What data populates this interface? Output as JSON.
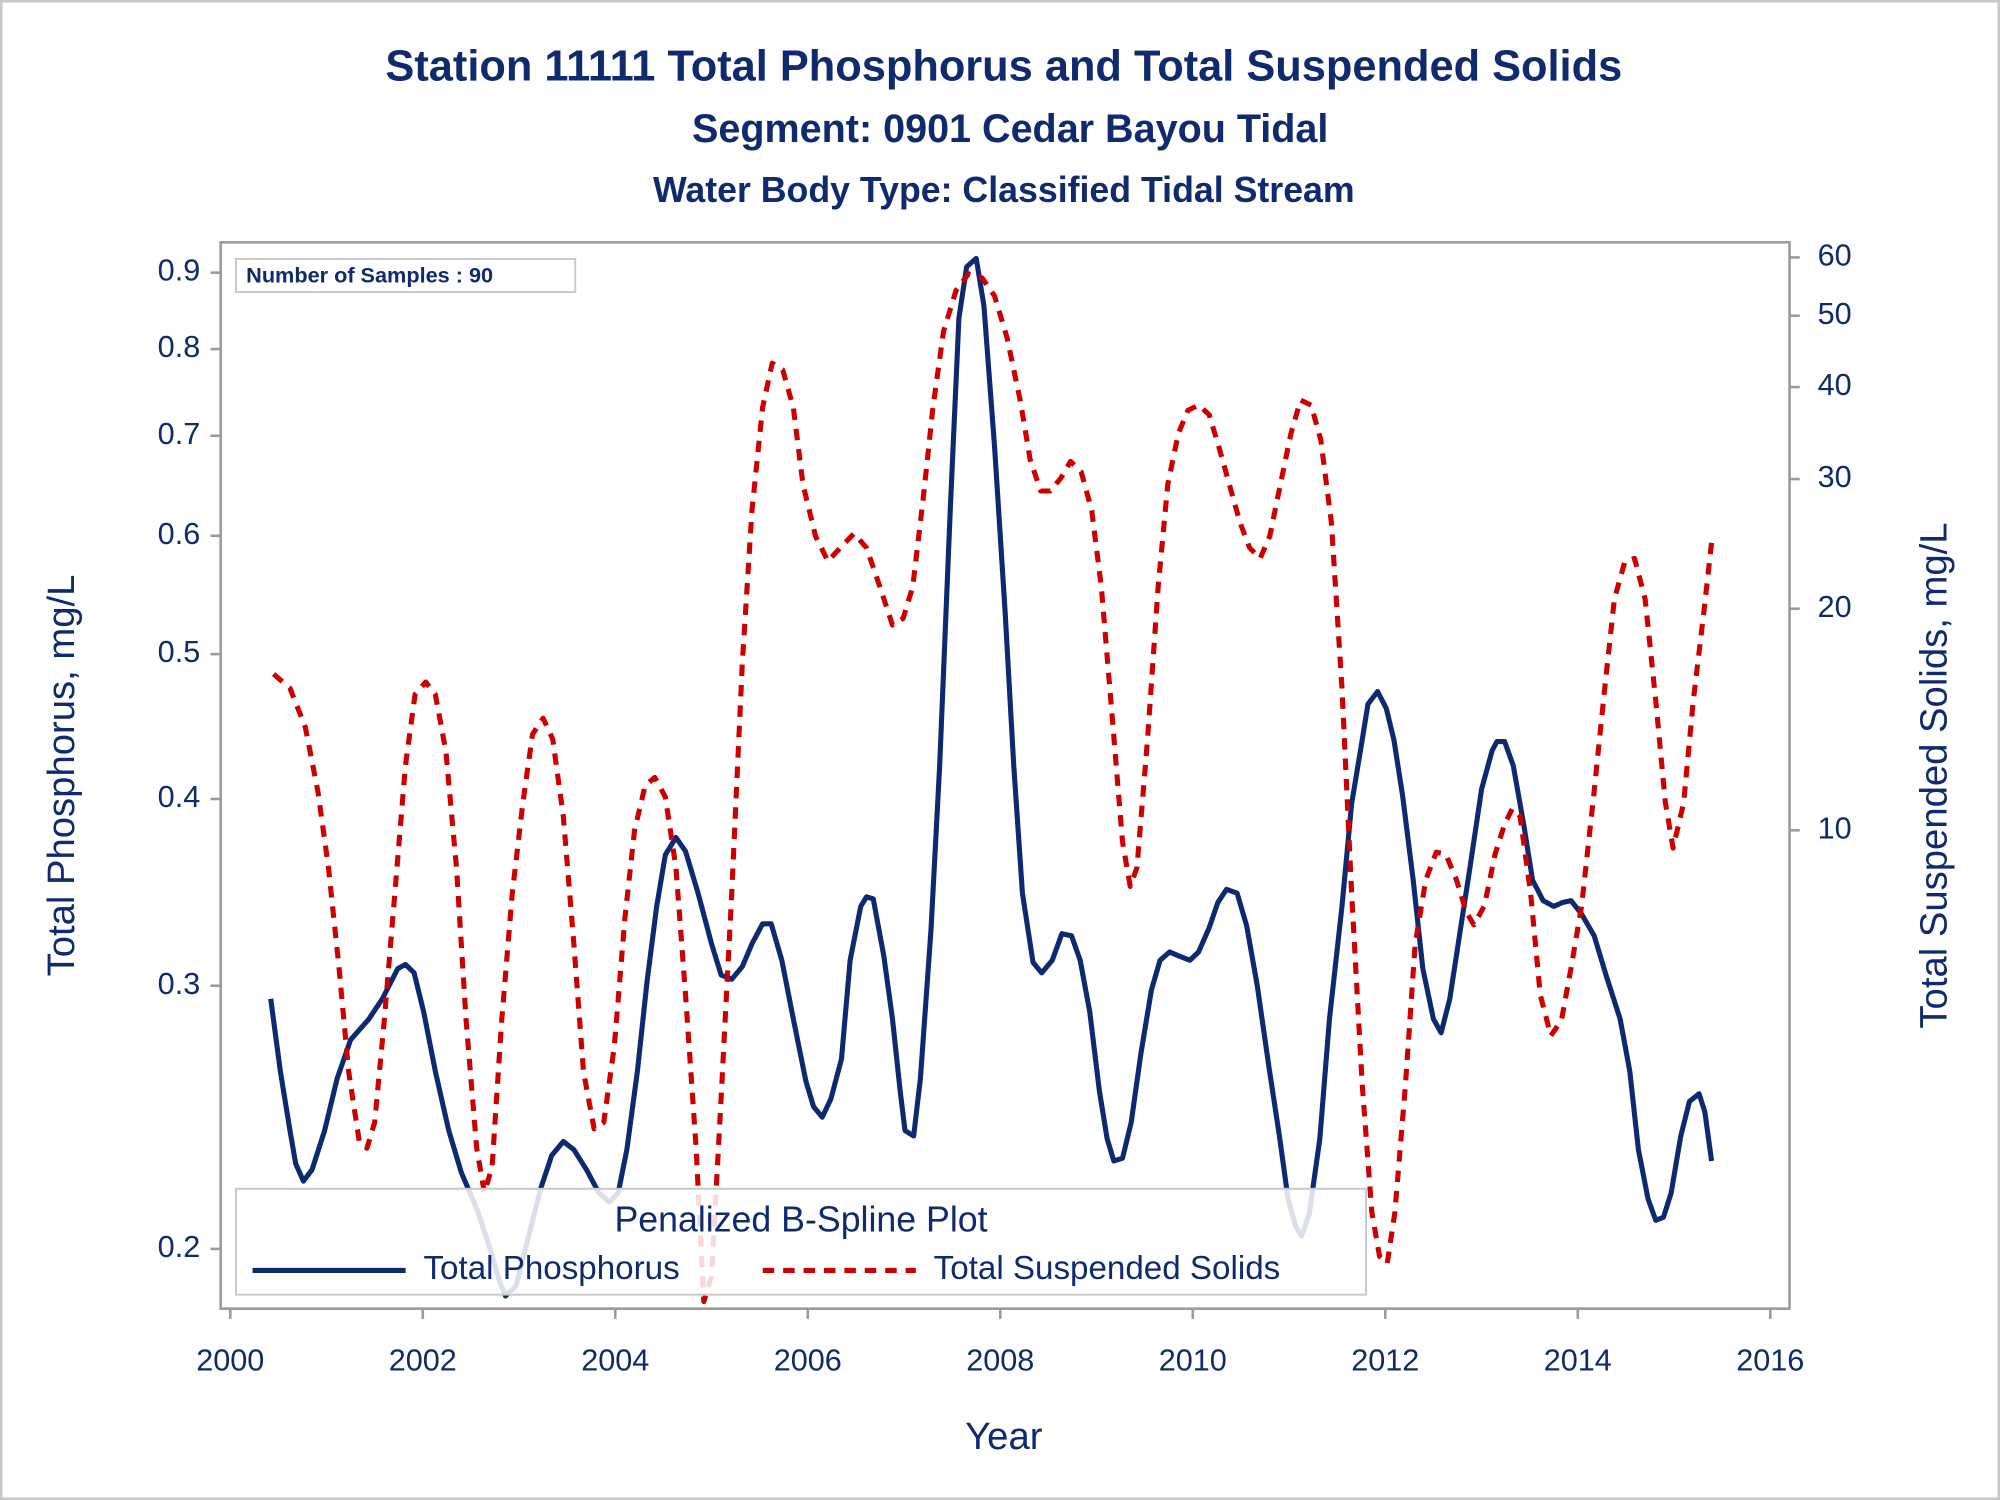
{
  "chart_data": {
    "type": "line",
    "title": "Station 11111  Total Phosphorus and Total Suspended Solids",
    "subtitles": [
      "Segment: 0901  Cedar Bayou Tidal",
      "Water Body Type: Classified Tidal Stream"
    ],
    "annotation": "Number of Samples : 90",
    "xlabel": "Year",
    "ylabel": "Total Phosphorus, mg/L",
    "y2label": "Total Suspended Solids, mg/L",
    "xlim": [
      1999.9,
      2016.2
    ],
    "xticks": [
      2000,
      2002,
      2004,
      2006,
      2008,
      2010,
      2012,
      2014,
      2016
    ],
    "ylim": [
      0.1824,
      0.943
    ],
    "yticks": [
      0.2,
      0.3,
      0.4,
      0.5,
      0.6,
      0.7,
      0.8,
      0.9
    ],
    "y2lim": [
      2.24,
      62.9
    ],
    "y2ticks": [
      10,
      20,
      30,
      40,
      50,
      60
    ],
    "yscale": "log",
    "y2scale": "log",
    "legend": {
      "title": "Penalized B-Spline Plot",
      "position": "bottom-left"
    },
    "series": [
      {
        "name": "Total Phosphorus",
        "color": "#0d2a70",
        "line_style": "solid",
        "axis": "y",
        "x": [
          2000.42,
          2000.52,
          2000.62,
          2000.68,
          2000.76,
          2000.85,
          2000.98,
          2001.11,
          2001.25,
          2001.44,
          2001.58,
          2001.74,
          2001.82,
          2001.91,
          2002.01,
          2002.13,
          2002.27,
          2002.4,
          2002.57,
          2002.7,
          2002.8,
          2002.86,
          2002.97,
          2003.1,
          2003.23,
          2003.34,
          2003.46,
          2003.57,
          2003.7,
          2003.83,
          2003.94,
          2004.03,
          2004.12,
          2004.23,
          2004.33,
          2004.43,
          2004.52,
          2004.63,
          2004.73,
          2004.86,
          2005.0,
          2005.1,
          2005.21,
          2005.32,
          2005.42,
          2005.53,
          2005.62,
          2005.73,
          2005.85,
          2005.98,
          2006.06,
          2006.15,
          2006.24,
          2006.35,
          2006.44,
          2006.55,
          2006.61,
          2006.68,
          2006.79,
          2006.88,
          2006.96,
          2007.01,
          2007.1,
          2007.17,
          2007.28,
          2007.37,
          2007.48,
          2007.57,
          2007.65,
          2007.75,
          2007.83,
          2007.94,
          2008.05,
          2008.14,
          2008.23,
          2008.34,
          2008.43,
          2008.54,
          2008.64,
          2008.74,
          2008.83,
          2008.93,
          2009.03,
          2009.11,
          2009.18,
          2009.27,
          2009.36,
          2009.46,
          2009.57,
          2009.66,
          2009.76,
          2009.86,
          2009.97,
          2010.06,
          2010.17,
          2010.26,
          2010.35,
          2010.46,
          2010.56,
          2010.67,
          2010.79,
          2010.9,
          2010.99,
          2011.07,
          2011.13,
          2011.21,
          2011.32,
          2011.42,
          2011.55,
          2011.65,
          2011.76,
          2011.82,
          2011.92,
          2012.01,
          2012.09,
          2012.18,
          2012.29,
          2012.39,
          2012.5,
          2012.58,
          2012.67,
          2012.78,
          2012.88,
          2013.0,
          2013.11,
          2013.16,
          2013.24,
          2013.33,
          2013.44,
          2013.53,
          2013.64,
          2013.75,
          2013.84,
          2013.93,
          2014.04,
          2014.17,
          2014.3,
          2014.44,
          2014.54,
          2014.63,
          2014.73,
          2014.81,
          2014.89,
          2014.97,
          2015.07,
          2015.16,
          2015.26,
          2015.32,
          2015.39
        ],
        "values": [
          0.294,
          0.263,
          0.24,
          0.228,
          0.222,
          0.226,
          0.24,
          0.26,
          0.276,
          0.285,
          0.294,
          0.308,
          0.31,
          0.306,
          0.288,
          0.263,
          0.24,
          0.225,
          0.212,
          0.2,
          0.19,
          0.186,
          0.189,
          0.204,
          0.22,
          0.231,
          0.236,
          0.233,
          0.226,
          0.218,
          0.215,
          0.218,
          0.233,
          0.263,
          0.302,
          0.339,
          0.367,
          0.377,
          0.369,
          0.346,
          0.32,
          0.305,
          0.303,
          0.309,
          0.32,
          0.33,
          0.33,
          0.312,
          0.285,
          0.259,
          0.249,
          0.245,
          0.252,
          0.268,
          0.312,
          0.339,
          0.344,
          0.343,
          0.314,
          0.285,
          0.255,
          0.24,
          0.238,
          0.26,
          0.327,
          0.421,
          0.624,
          0.839,
          0.908,
          0.92,
          0.855,
          0.689,
          0.534,
          0.421,
          0.346,
          0.311,
          0.306,
          0.312,
          0.325,
          0.324,
          0.312,
          0.288,
          0.255,
          0.237,
          0.229,
          0.23,
          0.243,
          0.27,
          0.298,
          0.312,
          0.316,
          0.314,
          0.312,
          0.316,
          0.328,
          0.341,
          0.348,
          0.346,
          0.329,
          0.3,
          0.265,
          0.238,
          0.216,
          0.207,
          0.204,
          0.211,
          0.237,
          0.285,
          0.339,
          0.397,
          0.438,
          0.463,
          0.472,
          0.46,
          0.438,
          0.402,
          0.353,
          0.308,
          0.285,
          0.279,
          0.294,
          0.327,
          0.36,
          0.406,
          0.431,
          0.437,
          0.437,
          0.421,
          0.384,
          0.353,
          0.342,
          0.339,
          0.341,
          0.342,
          0.335,
          0.324,
          0.304,
          0.285,
          0.263,
          0.233,
          0.216,
          0.209,
          0.21,
          0.218,
          0.238,
          0.251,
          0.254,
          0.247,
          0.229
        ]
      },
      {
        "name": "Total Suspended Solids",
        "color": "#cc0000",
        "line_style": "dashed",
        "axis": "y2",
        "x": [
          2000.45,
          2000.62,
          2000.78,
          2000.91,
          2001.02,
          2001.13,
          2001.23,
          2001.34,
          2001.42,
          2001.5,
          2001.6,
          2001.71,
          2001.82,
          2001.92,
          2002.03,
          2002.13,
          2002.24,
          2002.35,
          2002.45,
          2002.56,
          2002.64,
          2002.72,
          2002.82,
          2002.93,
          2003.04,
          2003.14,
          2003.25,
          2003.35,
          2003.46,
          2003.57,
          2003.67,
          2003.78,
          2003.88,
          2003.99,
          2004.1,
          2004.2,
          2004.31,
          2004.41,
          2004.52,
          2004.63,
          2004.73,
          2004.84,
          2004.92,
          2005.0,
          2005.1,
          2005.21,
          2005.32,
          2005.42,
          2005.53,
          2005.63,
          2005.74,
          2005.85,
          2005.95,
          2006.08,
          2006.21,
          2006.35,
          2006.48,
          2006.61,
          2006.75,
          2006.88,
          2006.99,
          2007.09,
          2007.2,
          2007.3,
          2007.41,
          2007.54,
          2007.67,
          2007.81,
          2007.94,
          2008.07,
          2008.21,
          2008.31,
          2008.42,
          2008.52,
          2008.63,
          2008.73,
          2008.84,
          2008.95,
          2009.05,
          2009.16,
          2009.27,
          2009.35,
          2009.42,
          2009.53,
          2009.64,
          2009.74,
          2009.85,
          2009.95,
          2010.06,
          2010.17,
          2010.27,
          2010.38,
          2010.49,
          2010.59,
          2010.7,
          2010.8,
          2010.91,
          2011.02,
          2011.12,
          2011.23,
          2011.33,
          2011.44,
          2011.55,
          2011.65,
          2011.76,
          2011.86,
          2011.94,
          2012.02,
          2012.1,
          2012.21,
          2012.31,
          2012.42,
          2012.53,
          2012.63,
          2012.74,
          2012.84,
          2012.92,
          2013.03,
          2013.14,
          2013.24,
          2013.32,
          2013.4,
          2013.51,
          2013.61,
          2013.72,
          2013.83,
          2013.93,
          2014.04,
          2014.17,
          2014.28,
          2014.38,
          2014.49,
          2014.59,
          2014.7,
          2014.81,
          2014.91,
          2014.99,
          2015.1,
          2015.2,
          2015.31,
          2015.39
        ],
        "values": [
          16.3,
          15.6,
          13.8,
          11.3,
          8.9,
          6.5,
          4.7,
          3.78,
          3.7,
          4.01,
          5.52,
          8.22,
          12.25,
          15.3,
          15.9,
          15.3,
          12.8,
          8.9,
          5.52,
          3.7,
          3.22,
          3.49,
          5.52,
          8.22,
          10.9,
          13.5,
          14.2,
          13.3,
          10.45,
          7.0,
          4.7,
          3.93,
          4.01,
          5.09,
          7.6,
          10.0,
          11.5,
          11.8,
          11.1,
          8.9,
          5.98,
          3.7,
          2.29,
          2.48,
          4.34,
          8.22,
          16.9,
          27.2,
          37.5,
          43.1,
          42.2,
          37.5,
          29.5,
          25.1,
          23.2,
          24.3,
          25.3,
          24.2,
          21.4,
          19.0,
          19.4,
          21.4,
          28.3,
          37.5,
          47.6,
          54.1,
          57.0,
          56.3,
          53.2,
          46.7,
          38.2,
          31.9,
          28.9,
          28.9,
          30.1,
          31.7,
          30.7,
          27.2,
          21.4,
          14.4,
          9.64,
          8.39,
          8.9,
          13.3,
          21.4,
          29.5,
          34.6,
          37.2,
          37.8,
          36.7,
          33.2,
          29.5,
          26.2,
          24.2,
          23.4,
          25.1,
          29.5,
          34.6,
          38.4,
          37.8,
          33.9,
          26.2,
          15.6,
          8.22,
          4.52,
          3.03,
          2.64,
          2.58,
          3.03,
          4.52,
          7.0,
          8.56,
          9.34,
          9.27,
          8.56,
          7.75,
          7.44,
          7.9,
          9.27,
          10.2,
          10.7,
          10.45,
          8.22,
          5.98,
          5.26,
          5.52,
          6.5,
          7.9,
          11.3,
          15.6,
          20.6,
          23.2,
          23.4,
          20.6,
          15.0,
          10.9,
          9.46,
          10.9,
          15.0,
          19.8,
          24.6
        ]
      }
    ]
  }
}
